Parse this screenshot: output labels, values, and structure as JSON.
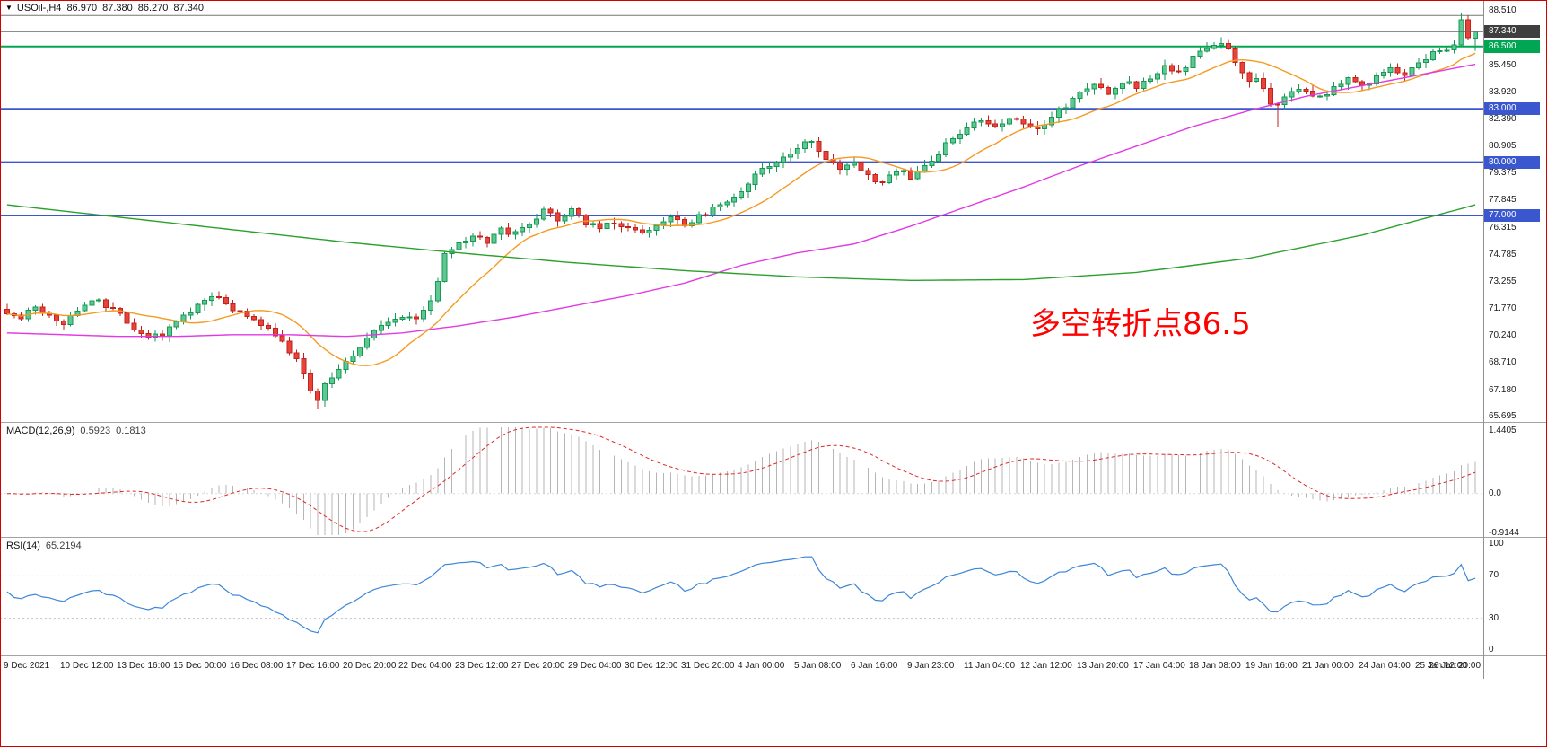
{
  "window": {
    "border_color": "#d40000",
    "background": "#ffffff"
  },
  "header": {
    "dropdown_icon": "▼",
    "symbol_period": "USOil-,H4",
    "open": "86.970",
    "high": "87.380",
    "low": "86.270",
    "close": "87.340"
  },
  "annotation": {
    "text": "多空转折点86.5",
    "color": "#ff0000"
  },
  "price_axis": {
    "labels": [
      "88.510",
      "85.450",
      "83.920",
      "82.390",
      "80.905",
      "79.375",
      "77.845",
      "76.315",
      "74.785",
      "73.255",
      "71.770",
      "70.240",
      "68.710",
      "67.180",
      "65.695"
    ],
    "boxes": [
      {
        "text": "87.340",
        "bg": "#3f3f3f"
      },
      {
        "text": "86.500",
        "bg": "#00a651"
      },
      {
        "text": "83.000",
        "bg": "#3a57cf"
      },
      {
        "text": "80.000",
        "bg": "#3a57cf"
      },
      {
        "text": "77.000",
        "bg": "#3a57cf"
      }
    ]
  },
  "indicators": {
    "macd": {
      "label": "MACD(12,26,9)",
      "value_main": "0.5923",
      "value_signal": "0.1813",
      "axis": [
        "1.4405",
        "0.0",
        "-0.9144"
      ]
    },
    "rsi": {
      "label": "RSI(14)",
      "value": "65.2194",
      "axis_values": [
        100,
        70,
        30,
        0
      ]
    }
  },
  "time_axis": {
    "labels": [
      "9 Dec 2021",
      "10 Dec 12:00",
      "13 Dec 16:00",
      "15 Dec 00:00",
      "16 Dec 08:00",
      "17 Dec 16:00",
      "20 Dec 20:00",
      "22 Dec 04:00",
      "23 Dec 12:00",
      "27 Dec 20:00",
      "29 Dec 04:00",
      "30 Dec 12:00",
      "31 Dec 20:00",
      "4 Jan 00:00",
      "5 Jan 08:00",
      "6 Jan 16:00",
      "9 Jan 23:00",
      "11 Jan 04:00",
      "12 Jan 12:00",
      "13 Jan 20:00",
      "17 Jan 04:00",
      "18 Jan 08:00",
      "19 Jan 16:00",
      "21 Jan 00:00",
      "24 Jan 04:00",
      "25 Jan 12:00",
      "26 Jan 20:00"
    ]
  },
  "chart_data": {
    "type": "candlestick",
    "symbol": "USOil",
    "timeframe": "H4",
    "bars": 209,
    "price_range": [
      65.695,
      88.51
    ],
    "colors": {
      "up_fill": "#5ec792",
      "up_stroke": "#149a53",
      "down_fill": "#e8433b",
      "down_stroke": "#c2221a",
      "ma_fast": "#f59a23",
      "ma_mid": "#e23ae2",
      "ma_slow": "#2ca02c",
      "macd_hist": "#b5b5b5",
      "macd_signal": "#e02727",
      "rsi_line": "#3d86d8",
      "level_dash": "#c4c4c4"
    },
    "close_waypoints": [
      [
        0,
        71.6
      ],
      [
        2,
        71.1
      ],
      [
        4,
        71.9
      ],
      [
        6,
        71.3
      ],
      [
        8,
        70.9
      ],
      [
        10,
        71.7
      ],
      [
        12,
        72.3
      ],
      [
        14,
        71.9
      ],
      [
        16,
        71.5
      ],
      [
        18,
        70.7
      ],
      [
        20,
        70.1
      ],
      [
        22,
        70.4
      ],
      [
        24,
        71.0
      ],
      [
        26,
        71.6
      ],
      [
        28,
        72.2
      ],
      [
        30,
        72.4
      ],
      [
        32,
        71.8
      ],
      [
        34,
        71.4
      ],
      [
        36,
        70.9
      ],
      [
        38,
        70.3
      ],
      [
        40,
        69.4
      ],
      [
        42,
        68.2
      ],
      [
        43,
        67.1
      ],
      [
        44,
        66.6
      ],
      [
        45,
        67.4
      ],
      [
        46,
        68.0
      ],
      [
        48,
        68.8
      ],
      [
        50,
        69.7
      ],
      [
        52,
        70.6
      ],
      [
        54,
        71.1
      ],
      [
        56,
        71.4
      ],
      [
        58,
        71.2
      ],
      [
        60,
        72.1
      ],
      [
        61,
        73.4
      ],
      [
        62,
        74.7
      ],
      [
        64,
        75.4
      ],
      [
        66,
        75.9
      ],
      [
        68,
        75.5
      ],
      [
        70,
        76.2
      ],
      [
        72,
        76.0
      ],
      [
        74,
        76.5
      ],
      [
        76,
        77.2
      ],
      [
        78,
        76.8
      ],
      [
        80,
        77.3
      ],
      [
        82,
        76.6
      ],
      [
        84,
        76.2
      ],
      [
        86,
        76.6
      ],
      [
        88,
        76.4
      ],
      [
        90,
        75.9
      ],
      [
        92,
        76.4
      ],
      [
        94,
        76.8
      ],
      [
        96,
        76.5
      ],
      [
        98,
        76.9
      ],
      [
        100,
        77.4
      ],
      [
        102,
        77.8
      ],
      [
        104,
        78.4
      ],
      [
        106,
        79.3
      ],
      [
        108,
        79.7
      ],
      [
        110,
        80.3
      ],
      [
        112,
        80.9
      ],
      [
        114,
        81.1
      ],
      [
        116,
        80.3
      ],
      [
        118,
        79.7
      ],
      [
        120,
        79.9
      ],
      [
        122,
        79.3
      ],
      [
        124,
        78.8
      ],
      [
        126,
        79.5
      ],
      [
        128,
        79.2
      ],
      [
        130,
        79.9
      ],
      [
        132,
        80.5
      ],
      [
        134,
        81.4
      ],
      [
        136,
        82.0
      ],
      [
        138,
        82.4
      ],
      [
        140,
        82.0
      ],
      [
        142,
        82.6
      ],
      [
        144,
        82.3
      ],
      [
        146,
        81.8
      ],
      [
        148,
        82.5
      ],
      [
        150,
        83.2
      ],
      [
        152,
        83.8
      ],
      [
        154,
        84.3
      ],
      [
        156,
        83.9
      ],
      [
        158,
        84.5
      ],
      [
        160,
        84.3
      ],
      [
        162,
        84.8
      ],
      [
        164,
        85.3
      ],
      [
        166,
        85.1
      ],
      [
        168,
        85.8
      ],
      [
        170,
        86.4
      ],
      [
        172,
        86.6
      ],
      [
        173,
        86.2
      ],
      [
        174,
        85.6
      ],
      [
        175,
        84.9
      ],
      [
        176,
        84.4
      ],
      [
        177,
        84.8
      ],
      [
        178,
        84.1
      ],
      [
        179,
        83.4
      ],
      [
        180,
        83.3
      ],
      [
        181,
        83.7
      ],
      [
        182,
        83.9
      ],
      [
        184,
        84.1
      ],
      [
        186,
        83.6
      ],
      [
        188,
        84.2
      ],
      [
        190,
        84.6
      ],
      [
        192,
        84.3
      ],
      [
        194,
        84.8
      ],
      [
        196,
        85.2
      ],
      [
        198,
        85.0
      ],
      [
        200,
        85.6
      ],
      [
        202,
        86.1
      ],
      [
        204,
        86.3
      ],
      [
        205,
        86.6
      ],
      [
        206,
        88.0
      ],
      [
        207,
        87.0
      ],
      [
        208,
        87.34
      ]
    ],
    "special_bars": {
      "crash_low": [
        44,
        66.12
      ],
      "spike_low": [
        180,
        81.95
      ],
      "run_high": [
        206,
        88.35
      ],
      "last_bar": {
        "open": 86.97,
        "high": 87.38,
        "low": 86.27,
        "close": 87.34
      }
    },
    "moving_averages": [
      {
        "name": "fast",
        "color": "#f59a23",
        "period": 13
      },
      {
        "name": "mid",
        "color": "#e23ae2",
        "waypoints": [
          [
            0,
            70.4
          ],
          [
            8,
            70.3
          ],
          [
            16,
            70.2
          ],
          [
            24,
            70.2
          ],
          [
            32,
            70.3
          ],
          [
            40,
            70.3
          ],
          [
            48,
            70.2
          ],
          [
            56,
            70.4
          ],
          [
            64,
            70.8
          ],
          [
            72,
            71.3
          ],
          [
            80,
            71.9
          ],
          [
            88,
            72.5
          ],
          [
            96,
            73.2
          ],
          [
            104,
            74.2
          ],
          [
            112,
            74.9
          ],
          [
            120,
            75.4
          ],
          [
            128,
            76.4
          ],
          [
            136,
            77.5
          ],
          [
            144,
            78.6
          ],
          [
            152,
            79.8
          ],
          [
            160,
            80.9
          ],
          [
            168,
            82.0
          ],
          [
            176,
            82.9
          ],
          [
            184,
            83.7
          ],
          [
            192,
            84.3
          ],
          [
            200,
            84.9
          ],
          [
            208,
            85.5
          ]
        ]
      },
      {
        "name": "slow",
        "color": "#2ca02c",
        "waypoints": [
          [
            0,
            77.6
          ],
          [
            16,
            76.9
          ],
          [
            32,
            76.2
          ],
          [
            48,
            75.5
          ],
          [
            64,
            74.9
          ],
          [
            80,
            74.35
          ],
          [
            96,
            73.9
          ],
          [
            112,
            73.55
          ],
          [
            128,
            73.35
          ],
          [
            144,
            73.4
          ],
          [
            160,
            73.8
          ],
          [
            176,
            74.6
          ],
          [
            192,
            75.9
          ],
          [
            208,
            77.6
          ]
        ]
      }
    ],
    "hlines": [
      {
        "price": 88.25,
        "color": "#777777",
        "style": "solid",
        "width": 1,
        "layer": "below"
      },
      {
        "price": 86.5,
        "color": "#00a651",
        "style": "solid",
        "width": 2,
        "layer": "below"
      },
      {
        "price": 83.0,
        "color": "#3a57cf",
        "style": "solid",
        "width": 2,
        "layer": "below"
      },
      {
        "price": 80.0,
        "color": "#3a57cf",
        "style": "solid",
        "width": 2,
        "layer": "below"
      },
      {
        "price": 77.0,
        "color": "#3a57cf",
        "style": "solid",
        "width": 2,
        "layer": "below"
      },
      {
        "price": 87.34,
        "color": "#666666",
        "style": "solid",
        "width": 1,
        "layer": "top"
      }
    ],
    "macd": {
      "fast": 12,
      "slow": 26,
      "signal": 9,
      "range": [
        -0.9144,
        1.4405
      ]
    },
    "rsi": {
      "period": 14,
      "range": [
        0,
        100
      ],
      "levels": [
        70,
        30
      ]
    }
  }
}
